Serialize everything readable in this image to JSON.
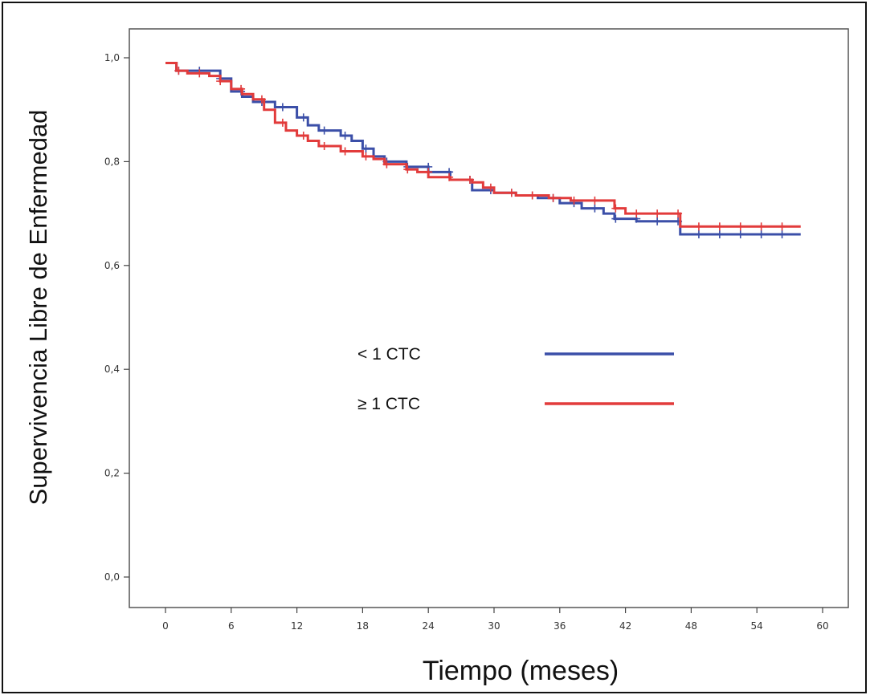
{
  "chart_data": {
    "type": "line",
    "title": "",
    "xlabel": "Tiempo (meses)",
    "ylabel": "Supervivencia Libre de Enfermedad",
    "xlim": [
      0,
      60
    ],
    "ylim": [
      0.0,
      1.0
    ],
    "x_ticks": [
      "0",
      "6",
      "12",
      "18",
      "24",
      "30",
      "36",
      "42",
      "48",
      "54",
      "60"
    ],
    "y_ticks": [
      "0,0",
      "0,2",
      "0,4",
      "0,6",
      "0,8",
      "1,0"
    ],
    "grid": false,
    "legend_position": "center",
    "series": [
      {
        "name": "< 1 CTC",
        "color": "#3b4fa8",
        "x": [
          0,
          1,
          5,
          6,
          7,
          8,
          10,
          12,
          13,
          14,
          16,
          17,
          18,
          19,
          20,
          22,
          24,
          26,
          28,
          30,
          32,
          34,
          36,
          38,
          40,
          41,
          43,
          47,
          58
        ],
        "y": [
          0.99,
          0.975,
          0.96,
          0.935,
          0.925,
          0.915,
          0.905,
          0.885,
          0.87,
          0.86,
          0.85,
          0.84,
          0.825,
          0.81,
          0.8,
          0.79,
          0.78,
          0.765,
          0.745,
          0.74,
          0.735,
          0.73,
          0.72,
          0.71,
          0.7,
          0.69,
          0.685,
          0.66,
          0.66
        ]
      },
      {
        "name": "≥ 1 CTC",
        "color": "#e23b3b",
        "x": [
          0,
          1,
          2,
          4,
          5,
          6,
          7,
          8,
          9,
          10,
          11,
          12,
          13,
          14,
          16,
          18,
          19,
          20,
          22,
          23,
          24,
          26,
          28,
          29,
          30,
          32,
          35,
          37,
          41,
          42,
          47,
          58
        ],
        "y": [
          0.99,
          0.975,
          0.97,
          0.965,
          0.955,
          0.94,
          0.93,
          0.92,
          0.9,
          0.875,
          0.86,
          0.85,
          0.84,
          0.83,
          0.82,
          0.81,
          0.805,
          0.795,
          0.785,
          0.78,
          0.77,
          0.765,
          0.76,
          0.75,
          0.74,
          0.735,
          0.73,
          0.725,
          0.71,
          0.7,
          0.675,
          0.675
        ]
      }
    ]
  }
}
